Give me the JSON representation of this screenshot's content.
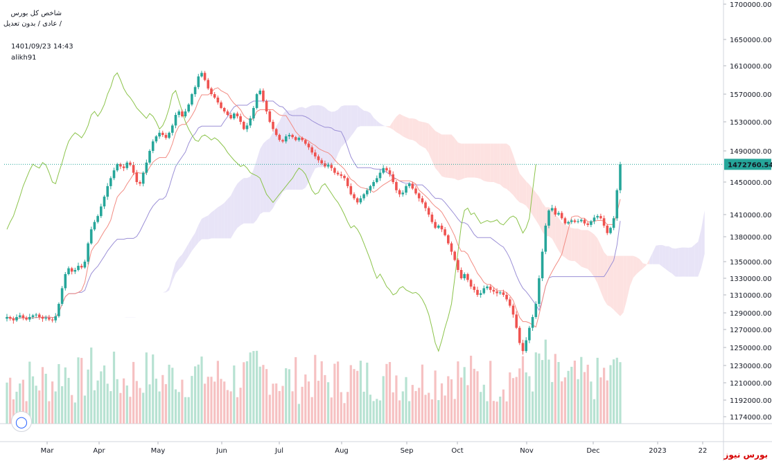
{
  "header": {
    "title": "شاخص کل بورس",
    "subtitle": "عادی / بدون تعدیل /",
    "timestamp": "1401/09/23 14:43",
    "author": "alikh91"
  },
  "watermark": "بورس نیوز",
  "logo_icon": "tradingview-icon",
  "colors": {
    "up": "#26a69a",
    "down": "#ef5350",
    "tenkan": "#f28b82",
    "kijun": "#9b8fd6",
    "chikou": "#8bc34a",
    "cloud_bull": "#e8e4f7",
    "cloud_bear": "#fde2e1",
    "vol_up": "#b7e2d2",
    "vol_down": "#f6c1c2",
    "price_line": "#26a69a"
  },
  "chart_data": {
    "type": "candlestick",
    "title": "شاخص کل بورس",
    "price_ticks": [
      "1700000.00",
      "1650000.00",
      "1610000.00",
      "1570000.00",
      "1530000.00",
      "1490000.00",
      "1450000.00",
      "1410000.00",
      "1380000.00",
      "1350000.00",
      "1330000.00",
      "1310000.00",
      "1290000.00",
      "1270000.00",
      "1250000.00",
      "1230000.00",
      "1210000.00",
      "1192000.00",
      "1174000.00"
    ],
    "x_ticks": [
      "Mar",
      "Apr",
      "May",
      "Jun",
      "Jul",
      "Aug",
      "Sep",
      "Oct",
      "Nov",
      "Dec",
      "2023",
      "22"
    ],
    "last_price": "1472760.54",
    "ylim": [
      1160000,
      1705000
    ],
    "grid": false,
    "series": {
      "close": [
        1285000,
        1283000,
        1281000,
        1285000,
        1287000,
        1284000,
        1282000,
        1285000,
        1287000,
        1288000,
        1285000,
        1283000,
        1284000,
        1282000,
        1281000,
        1286000,
        1300000,
        1318000,
        1335000,
        1342000,
        1338000,
        1340000,
        1345000,
        1343000,
        1350000,
        1372000,
        1390000,
        1400000,
        1408000,
        1420000,
        1432000,
        1445000,
        1455000,
        1465000,
        1473000,
        1470000,
        1468000,
        1475000,
        1472000,
        1462000,
        1450000,
        1448000,
        1462000,
        1475000,
        1490000,
        1503000,
        1510000,
        1515000,
        1512000,
        1508000,
        1515000,
        1525000,
        1540000,
        1545000,
        1538000,
        1545000,
        1555000,
        1570000,
        1580000,
        1595000,
        1600000,
        1590000,
        1578000,
        1570000,
        1565000,
        1558000,
        1550000,
        1545000,
        1540000,
        1535000,
        1542000,
        1538000,
        1530000,
        1520000,
        1525000,
        1535000,
        1550000,
        1570000,
        1575000,
        1560000,
        1545000,
        1530000,
        1520000,
        1512000,
        1505000,
        1503000,
        1510000,
        1512000,
        1509000,
        1505000,
        1508000,
        1505000,
        1500000,
        1495000,
        1488000,
        1483000,
        1478000,
        1474000,
        1470000,
        1472000,
        1468000,
        1462000,
        1460000,
        1458000,
        1455000,
        1445000,
        1435000,
        1430000,
        1425000,
        1430000,
        1435000,
        1440000,
        1445000,
        1450000,
        1455000,
        1462000,
        1468000,
        1465000,
        1460000,
        1450000,
        1440000,
        1435000,
        1437000,
        1445000,
        1448000,
        1442000,
        1436000,
        1430000,
        1425000,
        1418000,
        1410000,
        1400000,
        1392000,
        1395000,
        1390000,
        1382000,
        1372000,
        1362000,
        1352000,
        1340000,
        1330000,
        1335000,
        1328000,
        1320000,
        1316000,
        1310000,
        1312000,
        1318000,
        1320000,
        1316000,
        1314000,
        1312000,
        1313000,
        1310000,
        1305000,
        1298000,
        1288000,
        1272000,
        1255000,
        1246000,
        1258000,
        1272000,
        1285000,
        1300000,
        1330000,
        1362000,
        1395000,
        1415000,
        1418000,
        1410000,
        1412000,
        1405000,
        1398000,
        1400000,
        1402000,
        1400000,
        1401000,
        1403000,
        1398000,
        1396000,
        1401000,
        1406000,
        1408000,
        1405000,
        1395000,
        1385000,
        1392000,
        1405000,
        1440000,
        1472760
      ]
    },
    "volume_note": "volume histogram"
  }
}
